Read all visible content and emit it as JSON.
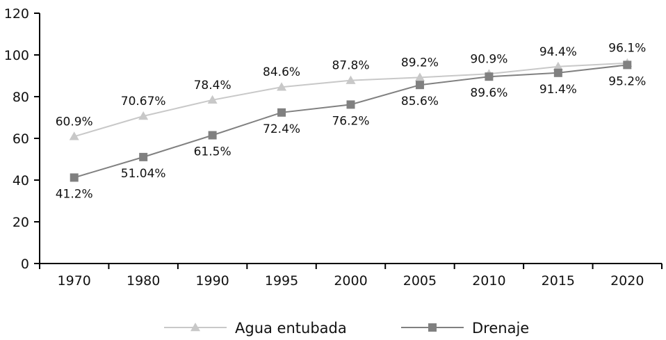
{
  "chart_data": {
    "type": "line",
    "title": "",
    "xlabel": "",
    "ylabel": "",
    "categories": [
      "1970",
      "1980",
      "1990",
      "1995",
      "2000",
      "2005",
      "2010",
      "2015",
      "2020"
    ],
    "ylim": [
      0,
      120
    ],
    "yticks": [
      0,
      20,
      40,
      60,
      80,
      100,
      120
    ],
    "grid": false,
    "legend_position": "bottom",
    "series": [
      {
        "name": "Agua entubada",
        "marker": "triangle",
        "color": "#c8c8c8",
        "values": [
          60.9,
          70.67,
          78.4,
          84.6,
          87.8,
          89.2,
          90.9,
          94.4,
          96.1
        ],
        "labels": [
          "60.9%",
          "70.67%",
          "78.4%",
          "84.6%",
          "87.8%",
          "89.2%",
          "90.9%",
          "94.4%",
          "96.1%"
        ]
      },
      {
        "name": "Drenaje",
        "marker": "square",
        "color": "#808080",
        "values": [
          41.2,
          51.04,
          61.5,
          72.4,
          76.2,
          85.6,
          89.6,
          91.4,
          95.2
        ],
        "labels": [
          "41.2%",
          "51.04%",
          "61.5%",
          "72.4%",
          "76.2%",
          "85.6%",
          "89.6%",
          "91.4%",
          "95.2%"
        ]
      }
    ]
  }
}
